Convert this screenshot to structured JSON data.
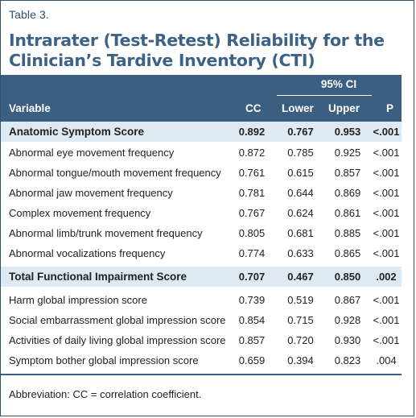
{
  "table_label": "Table 3.",
  "title_line1": "Intrarater (Test-Retest) Reliability for the",
  "title_line2": "Clinician’s Tardive Inventory (CTI)",
  "header": {
    "ci": "95% CI",
    "variable": "Variable",
    "cc": "CC",
    "lower": "Lower",
    "upper": "Upper",
    "p": "P"
  },
  "rows": [
    {
      "variable": "Anatomic Symptom Score",
      "cc": "0.892",
      "lower": "0.767",
      "upper": "0.953",
      "p": "<.001",
      "section": true
    },
    {
      "variable": "Abnormal eye movement frequency",
      "cc": "0.872",
      "lower": "0.785",
      "upper": "0.925",
      "p": "<.001"
    },
    {
      "variable": "Abnormal tongue/mouth movement frequency",
      "cc": "0.761",
      "lower": "0.615",
      "upper": "0.857",
      "p": "<.001"
    },
    {
      "variable": "Abnormal jaw movement frequency",
      "cc": "0.781",
      "lower": "0.644",
      "upper": "0.869",
      "p": "<.001"
    },
    {
      "variable": "Complex movement frequency",
      "cc": "0.767",
      "lower": "0.624",
      "upper": "0.861",
      "p": "<.001"
    },
    {
      "variable": "Abnormal limb/trunk movement frequency",
      "cc": "0.805",
      "lower": "0.681",
      "upper": "0.885",
      "p": "<.001"
    },
    {
      "variable": "Abnormal vocalizations frequency",
      "cc": "0.774",
      "lower": "0.633",
      "upper": "0.865",
      "p": "<.001"
    },
    {
      "variable": "Total Functional Impairment Score",
      "cc": "0.707",
      "lower": "0.467",
      "upper": "0.850",
      "p": ".002",
      "section": true
    },
    {
      "variable": "Harm global impression score",
      "cc": "0.739",
      "lower": "0.519",
      "upper": "0.867",
      "p": "<.001"
    },
    {
      "variable": "Social embarrassment global impression score",
      "cc": "0.854",
      "lower": "0.715",
      "upper": "0.928",
      "p": "<.001"
    },
    {
      "variable": "Activities of daily living global impression score",
      "cc": "0.857",
      "lower": "0.720",
      "upper": "0.930",
      "p": "<.001"
    },
    {
      "variable": "Symptom bother global impression score",
      "cc": "0.659",
      "lower": "0.394",
      "upper": "0.823",
      "p": ".004"
    }
  ],
  "footnote": "Abbreviation: CC = correlation coefficient.",
  "colors": {
    "header_bg": "#3b5f80",
    "title": "#3c6285",
    "section_bg": "#dfe9f2"
  }
}
